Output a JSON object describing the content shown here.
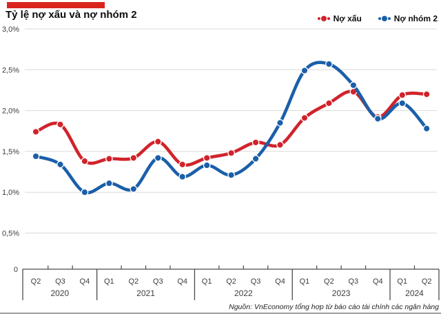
{
  "header": {
    "title": "Tỷ lệ nợ xấu và nợ nhóm 2"
  },
  "source_note": "Nguồn: VnEconomy tổng hợp từ báo cáo tài chính các ngân hàng",
  "colors": {
    "accent_bar": "#da251d",
    "no_xau": "#d1232b",
    "no_nhom2": "#1a5fa9",
    "grid": "#d9d9d9",
    "axis": "#4a4a4a",
    "tick_text": "#3c3c3c"
  },
  "chart_data": {
    "type": "line",
    "title": "Tỷ lệ nợ xấu và nợ nhóm 2",
    "categories": [
      "Q2 2020",
      "Q3 2020",
      "Q4 2020",
      "Q1 2021",
      "Q2 2021",
      "Q3 2021",
      "Q4 2021",
      "Q1 2022",
      "Q2 2022",
      "Q3 2022",
      "Q4 2022",
      "Q1 2023",
      "Q2 2023",
      "Q3 2023",
      "Q4 2023",
      "Q1 2024",
      "Q2 2024"
    ],
    "x_years": [
      {
        "label": "2020",
        "quarters": [
          "Q2",
          "Q3",
          "Q4"
        ]
      },
      {
        "label": "2021",
        "quarters": [
          "Q1",
          "Q2",
          "Q3",
          "Q4"
        ]
      },
      {
        "label": "2022",
        "quarters": [
          "Q1",
          "Q2",
          "Q3",
          "Q4"
        ]
      },
      {
        "label": "2023",
        "quarters": [
          "Q1",
          "Q2",
          "Q3",
          "Q4"
        ]
      },
      {
        "label": "2024",
        "quarters": [
          "Q1",
          "Q2"
        ]
      }
    ],
    "series": [
      {
        "name": "Nợ xấu",
        "color": "#d1232b",
        "values": [
          1.74,
          1.83,
          1.38,
          1.41,
          1.42,
          1.62,
          1.34,
          1.42,
          1.48,
          1.61,
          1.58,
          1.91,
          2.09,
          2.23,
          1.92,
          2.19,
          2.2
        ]
      },
      {
        "name": "Nợ nhóm 2",
        "color": "#1a5fa9",
        "values": [
          1.44,
          1.34,
          1.0,
          1.11,
          1.04,
          1.42,
          1.19,
          1.33,
          1.21,
          1.41,
          1.85,
          2.49,
          2.57,
          2.31,
          1.9,
          2.09,
          1.78
        ]
      }
    ],
    "yticks": [
      "3,0%",
      "2,5%",
      "2,0%",
      "1,5%",
      "1,0%",
      "0,5%",
      "0"
    ],
    "ylim": [
      0,
      3.0
    ],
    "ytick_step": 0.5,
    "grid": "horizontal",
    "legend_position": "top-right",
    "unit": "percent"
  }
}
